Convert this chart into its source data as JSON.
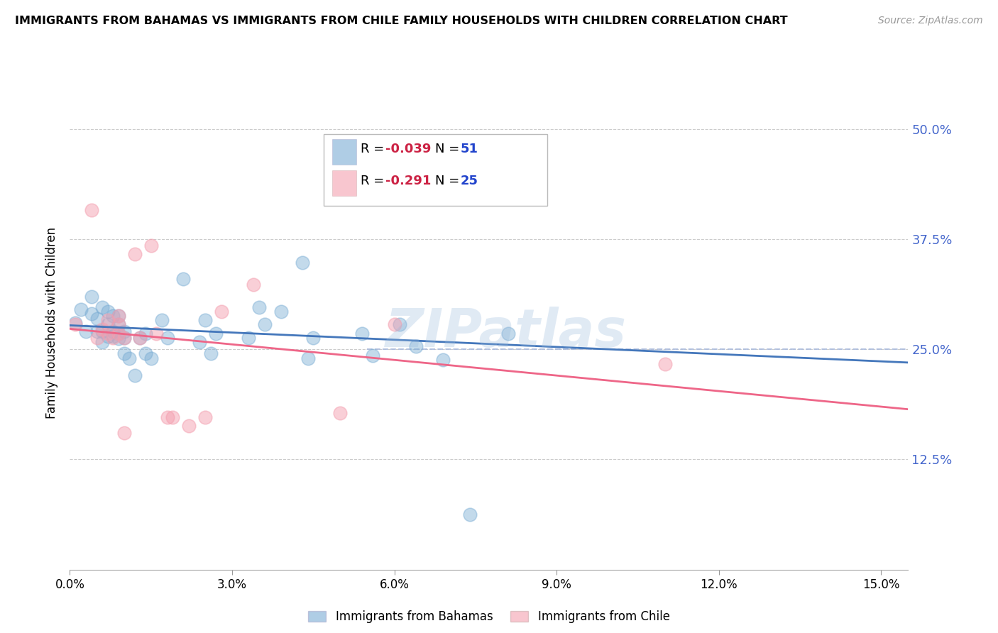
{
  "title": "IMMIGRANTS FROM BAHAMAS VS IMMIGRANTS FROM CHILE FAMILY HOUSEHOLDS WITH CHILDREN CORRELATION CHART",
  "source": "Source: ZipAtlas.com",
  "ylabel": "Family Households with Children",
  "x_tick_labels": [
    "0.0%",
    "3.0%",
    "6.0%",
    "9.0%",
    "12.0%",
    "15.0%"
  ],
  "x_ticks": [
    0.0,
    0.03,
    0.06,
    0.09,
    0.12,
    0.15
  ],
  "y_ticks": [
    0.0,
    0.125,
    0.25,
    0.375,
    0.5
  ],
  "y_tick_labels": [
    "",
    "12.5%",
    "25.0%",
    "37.5%",
    "50.0%"
  ],
  "xlim": [
    0.0,
    0.155
  ],
  "ylim": [
    0.0,
    0.56
  ],
  "bahamas_color": "#7aadd4",
  "chile_color": "#f4a0b0",
  "bahamas_line_color": "#4477bb",
  "chile_line_color": "#ee6688",
  "dashed_line_color": "#aabbdd",
  "watermark": "ZIPatlas",
  "legend_R_val1": "-0.039",
  "legend_N_val1": "51",
  "legend_R_val2": "-0.291",
  "legend_N_val2": "25",
  "r_text_color": "#cc2244",
  "n_text_color": "#2244cc",
  "right_axis_color": "#4466cc",
  "bahamas_x": [
    0.001,
    0.002,
    0.003,
    0.004,
    0.004,
    0.005,
    0.005,
    0.006,
    0.006,
    0.006,
    0.007,
    0.007,
    0.007,
    0.008,
    0.008,
    0.008,
    0.009,
    0.009,
    0.009,
    0.009,
    0.01,
    0.01,
    0.01,
    0.011,
    0.012,
    0.013,
    0.014,
    0.014,
    0.015,
    0.017,
    0.018,
    0.021,
    0.024,
    0.025,
    0.026,
    0.027,
    0.033,
    0.035,
    0.036,
    0.039,
    0.043,
    0.044,
    0.045,
    0.054,
    0.056,
    0.061,
    0.062,
    0.064,
    0.069,
    0.074,
    0.081
  ],
  "bahamas_y": [
    0.28,
    0.295,
    0.27,
    0.29,
    0.31,
    0.27,
    0.285,
    0.258,
    0.27,
    0.298,
    0.265,
    0.278,
    0.293,
    0.265,
    0.27,
    0.288,
    0.262,
    0.278,
    0.268,
    0.288,
    0.245,
    0.263,
    0.27,
    0.24,
    0.22,
    0.263,
    0.245,
    0.268,
    0.24,
    0.283,
    0.263,
    0.33,
    0.258,
    0.283,
    0.245,
    0.268,
    0.263,
    0.298,
    0.278,
    0.293,
    0.348,
    0.24,
    0.263,
    0.268,
    0.243,
    0.278,
    0.453,
    0.253,
    0.238,
    0.063,
    0.268
  ],
  "chile_x": [
    0.001,
    0.004,
    0.005,
    0.006,
    0.007,
    0.007,
    0.008,
    0.009,
    0.009,
    0.009,
    0.01,
    0.01,
    0.012,
    0.013,
    0.015,
    0.016,
    0.018,
    0.019,
    0.022,
    0.025,
    0.028,
    0.034,
    0.05,
    0.06,
    0.11
  ],
  "chile_y": [
    0.278,
    0.408,
    0.263,
    0.273,
    0.268,
    0.283,
    0.263,
    0.268,
    0.278,
    0.288,
    0.263,
    0.155,
    0.358,
    0.263,
    0.368,
    0.268,
    0.173,
    0.173,
    0.163,
    0.173,
    0.293,
    0.323,
    0.178,
    0.278,
    0.233
  ]
}
